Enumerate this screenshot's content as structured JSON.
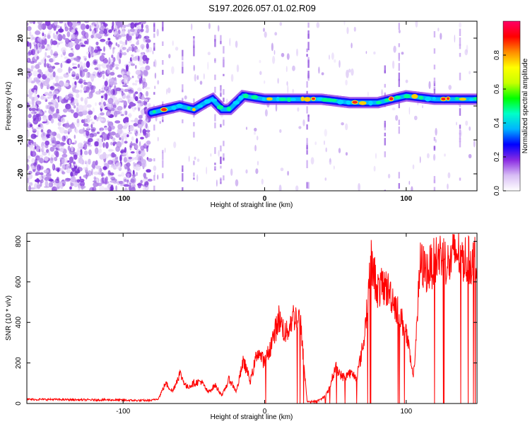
{
  "page_title": "S197.2026.057.01.02.R09",
  "chart_data": [
    {
      "type": "heatmap",
      "title": "S197.2026.057.01.02.R09",
      "xlabel": "Height of straight line (km)",
      "ylabel": "Frequency (Hz)",
      "xlim": [
        -168,
        150
      ],
      "ylim": [
        -25,
        25
      ],
      "xticks": [
        -100,
        0,
        100
      ],
      "yticks": [
        20,
        10,
        0,
        -10,
        -20
      ],
      "noise_region_end_km": -81,
      "ridge": {
        "x": [
          -80,
          -70,
          -60,
          -50,
          -42,
          -37,
          -30,
          -25,
          -20,
          -15,
          0,
          20,
          40,
          60,
          80,
          100,
          120,
          150
        ],
        "frequency_hz": [
          -2,
          -1,
          0,
          -1,
          1,
          2,
          -1,
          -1,
          1,
          3,
          2,
          2,
          2,
          1,
          1,
          3,
          2,
          2
        ]
      },
      "colorbar": {
        "label": "Normalized spectral amplitude",
        "ticks": [
          0.0,
          0.2,
          0.4,
          0.6,
          0.8
        ],
        "range": [
          0,
          1
        ],
        "colors": [
          "#ffffff",
          "#d8bdf5",
          "#8a2be2",
          "#0000ff",
          "#00b4ff",
          "#00ffc8",
          "#00ff00",
          "#c8ff00",
          "#ffff00",
          "#ff8c00",
          "#ff0000",
          "#ff0066"
        ]
      }
    },
    {
      "type": "line",
      "xlabel": "Height of straight line (km)",
      "ylabel": "SNR (10 * v/v)",
      "xlim": [
        -168,
        150
      ],
      "ylim": [
        0,
        840
      ],
      "xticks": [
        -100,
        0,
        100
      ],
      "yticks": [
        0,
        200,
        400,
        600,
        800
      ],
      "color": "#ff0000",
      "series": [
        {
          "name": "SNR",
          "x": [
            -168,
            -150,
            -130,
            -110,
            -90,
            -80,
            -75,
            -70,
            -65,
            -60,
            -55,
            -50,
            -45,
            -40,
            -35,
            -30,
            -25,
            -20,
            -15,
            -10,
            -5,
            0,
            5,
            10,
            15,
            20,
            25,
            30,
            35,
            40,
            45,
            50,
            55,
            60,
            65,
            70,
            75,
            80,
            85,
            90,
            95,
            100,
            105,
            110,
            115,
            120,
            125,
            130,
            135,
            140,
            145,
            150
          ],
          "y": [
            20,
            20,
            18,
            18,
            15,
            15,
            25,
            100,
            60,
            150,
            80,
            100,
            110,
            55,
            90,
            40,
            120,
            60,
            210,
            110,
            260,
            200,
            300,
            420,
            340,
            430,
            420,
            10,
            10,
            20,
            60,
            180,
            130,
            150,
            130,
            300,
            700,
            560,
            580,
            530,
            440,
            350,
            120,
            690,
            650,
            700,
            740,
            680,
            750,
            720,
            700,
            720
          ]
        }
      ]
    }
  ]
}
